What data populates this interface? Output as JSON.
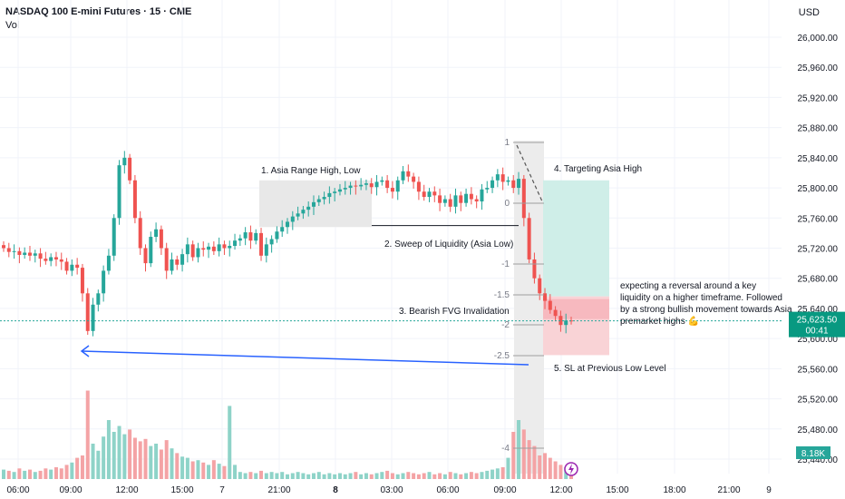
{
  "header": {
    "title": "NASDAQ 100 E-mini Futures · 15 · CME",
    "volume_label": "Vol",
    "currency": "USD"
  },
  "chart_data": {
    "type": "candlestick",
    "y_axis": {
      "min": 25430,
      "max": 26030,
      "ticks": [
        "26,000.00",
        "25,960.00",
        "25,920.00",
        "25,880.00",
        "25,840.00",
        "25,800.00",
        "25,760.00",
        "25,720.00",
        "25,680.00",
        "25,640.00",
        "25,600.00",
        "25,560.00",
        "25,520.00",
        "25,480.00",
        "25,440.00"
      ],
      "tick_values": [
        26000,
        25960,
        25920,
        25880,
        25840,
        25800,
        25760,
        25720,
        25680,
        25640,
        25600,
        25560,
        25520,
        25480,
        25440
      ]
    },
    "x_axis": {
      "ticks": [
        "06:00",
        "09:00",
        "12:00",
        "15:00",
        "7",
        "21:00",
        "8",
        "03:00",
        "06:00",
        "09:00",
        "12:00",
        "15:00",
        "18:00",
        "21:00",
        "9"
      ],
      "bold_ticks": [
        "8"
      ]
    },
    "price_tag": {
      "price": 25623.5,
      "label": "25,623.50",
      "countdown": "00:41"
    },
    "volume_tag": "8.18K",
    "colors": {
      "up": "#26a69a",
      "down": "#ef5350",
      "up_vol": "#8ed3c8",
      "down_vol": "#f4a3a5",
      "target": "#cfeee8",
      "stop": "#f9d3d6",
      "zone": "#e8e8e8",
      "arrow": "#2962ff"
    },
    "closes": [
      25720,
      25715,
      25716,
      25711,
      25714,
      25710,
      25713,
      25706,
      25703,
      25708,
      25705,
      25702,
      25690,
      25698,
      25694,
      25660,
      25610,
      25645,
      25660,
      25690,
      25710,
      25760,
      25830,
      25840,
      25810,
      25760,
      25720,
      25700,
      25735,
      25745,
      25720,
      25690,
      25705,
      25698,
      25712,
      25725,
      25708,
      25720,
      25718,
      25722,
      25716,
      25725,
      25720,
      25723,
      25730,
      25733,
      25741,
      25730,
      25740,
      25710,
      25725,
      25732,
      25742,
      25748,
      25755,
      25762,
      25766,
      25771,
      25775,
      25781,
      25785,
      25788,
      25793,
      25795,
      25798,
      25800,
      25803,
      25802,
      25804,
      25806,
      25801,
      25808,
      25810,
      25800,
      25795,
      25810,
      25822,
      25815,
      25808,
      25795,
      25788,
      25795,
      25790,
      25780,
      25785,
      25775,
      25790,
      25780,
      25792,
      25785,
      25782,
      25798,
      25800,
      25810,
      25818,
      25808,
      25810,
      25800,
      25812,
      25760,
      25705,
      25680,
      25660,
      25650,
      25638,
      25630,
      25618,
      25624,
      25623.5
    ],
    "volume_scale": {
      "min": 0,
      "max": 100
    },
    "volumes": [
      8,
      7,
      6,
      9,
      7,
      8,
      6,
      7,
      9,
      8,
      10,
      9,
      12,
      14,
      18,
      20,
      75,
      30,
      24,
      36,
      50,
      40,
      45,
      38,
      42,
      35,
      32,
      34,
      28,
      30,
      25,
      33,
      26,
      22,
      19,
      18,
      15,
      16,
      14,
      12,
      16,
      13,
      11,
      62,
      12,
      6,
      5,
      6,
      5,
      7,
      5,
      6,
      5,
      6,
      4,
      5,
      6,
      5,
      4,
      5,
      6,
      4,
      5,
      4,
      5,
      4,
      5,
      6,
      4,
      5,
      4,
      5,
      6,
      7,
      5,
      4,
      5,
      6,
      5,
      4,
      5,
      6,
      4,
      5,
      4,
      6,
      5,
      4,
      5,
      6,
      5,
      6,
      7,
      8,
      9,
      10,
      18,
      40,
      50,
      42,
      33,
      28,
      20,
      22,
      18,
      15,
      12,
      10,
      8
    ],
    "annotations": [
      {
        "text": "1. Asia Range High, Low"
      },
      {
        "text": "2. Sweep of Liquidity (Asia Low)"
      },
      {
        "text": "3. Bearish FVG Invalidation"
      },
      {
        "text": "4. Targeting Asia High"
      },
      {
        "text": "5. SL at Previous Low Level"
      },
      {
        "text": "expecting a reversal around a key"
      },
      {
        "text": "liquidity on a higher timeframe. Followed"
      },
      {
        "text": "by a strong bullish movement towards Asia"
      },
      {
        "text": "premarket highs 💪"
      }
    ],
    "fib_levels": [
      "1",
      "0",
      "-1",
      "-1.5",
      "-2",
      "-2.5",
      "-4"
    ],
    "asia_zone": {
      "top": 25810,
      "bottom": 25748
    },
    "position": {
      "entry": 25656,
      "target": 25810,
      "stop": 25578
    },
    "sweep_level": 25750,
    "previous_low": 25570
  }
}
